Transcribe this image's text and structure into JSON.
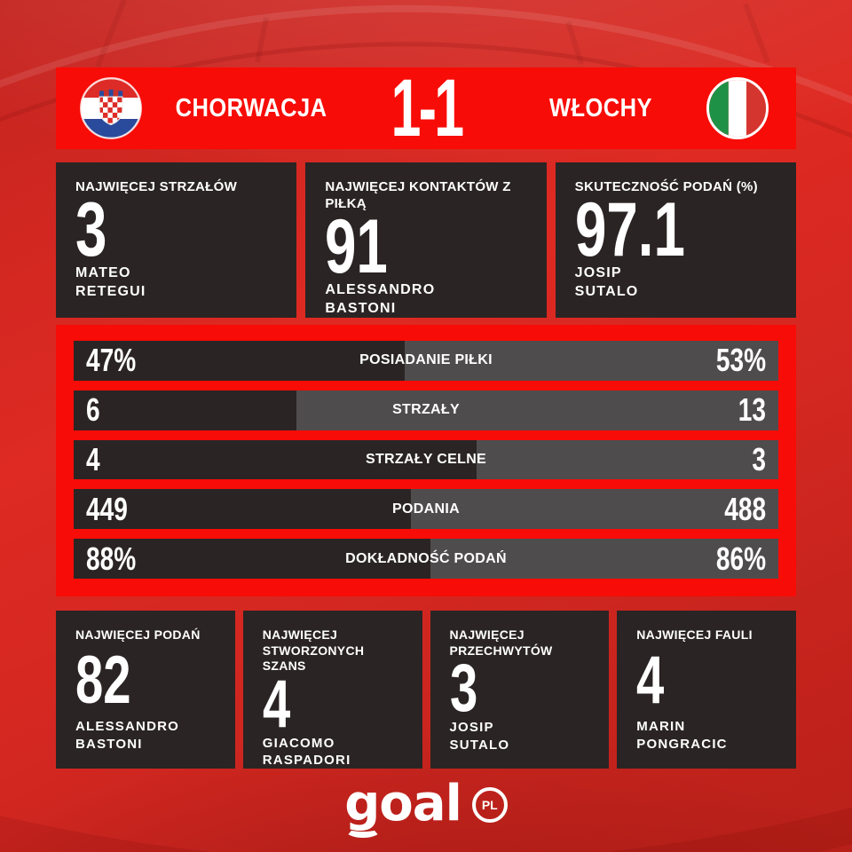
{
  "header": {
    "home_team": "CHORWACJA",
    "away_team": "WŁOCHY",
    "score": "1-1"
  },
  "top_cards": [
    {
      "label": "NAJWIĘCEJ STRZAŁÓW",
      "value": "3",
      "player_lines": [
        "MATEO",
        "RETEGUI"
      ]
    },
    {
      "label": "NAJWIĘCEJ KONTAKTÓW Z PIŁKĄ",
      "value": "91",
      "player_lines": [
        "ALESSANDRO",
        "BASTONI"
      ]
    },
    {
      "label": "SKUTECZNOŚĆ PODAŃ (%)",
      "value": "97.1",
      "player_lines": [
        "JOSIP",
        "SUTALO"
      ]
    }
  ],
  "comparison": {
    "rows": [
      {
        "label": "POSIADANIE PIŁKI",
        "home": 47,
        "away": 53,
        "home_display": "47%",
        "away_display": "53%"
      },
      {
        "label": "STRZAŁY",
        "home": 6,
        "away": 13,
        "home_display": "6",
        "away_display": "13"
      },
      {
        "label": "STRZAŁY CELNE",
        "home": 4,
        "away": 3,
        "home_display": "4",
        "away_display": "3"
      },
      {
        "label": "PODANIA",
        "home": 449,
        "away": 488,
        "home_display": "449",
        "away_display": "488"
      },
      {
        "label": "DOKŁADNOŚĆ PODAŃ",
        "home": 88,
        "away": 86,
        "home_display": "88%",
        "away_display": "86%"
      }
    ]
  },
  "bottom_cards": [
    {
      "label": "NAJWIĘCEJ PODAŃ",
      "value": "82",
      "player_lines": [
        "ALESSANDRO",
        "BASTONI"
      ]
    },
    {
      "label": "NAJWIĘCEJ STWORZONYCH SZANS",
      "value": "4",
      "player_lines": [
        "GIACOMO",
        "RASPADORI"
      ]
    },
    {
      "label": "NAJWIĘCEJ PRZECHWYTÓW",
      "value": "3",
      "player_lines": [
        "JOSIP",
        "SUTALO"
      ]
    },
    {
      "label": "NAJWIĘCEJ FAULI",
      "value": "4",
      "player_lines": [
        "MARIN",
        "PONGRACIC"
      ]
    }
  ],
  "footer": {
    "logo_text": "goal",
    "logo_badge": "PL"
  },
  "colors": {
    "bg-red": "#cc2620",
    "accent-red": "#f70c07",
    "card-dark": "#2b2424",
    "bar-gray": "#4f4c4d",
    "text-white": "#ffffff"
  },
  "chart_data": [
    {
      "type": "bar",
      "title": "CHORWACJA 1-1 WŁOCHY — statystyki meczu",
      "orientation": "horizontal-split-proportional",
      "categories": [
        "POSIADANIE PIŁKI",
        "STRZAŁY",
        "STRZAŁY CELNE",
        "PODANIA",
        "DOKŁADNOŚĆ PODAŃ"
      ],
      "series": [
        {
          "name": "CHORWACJA",
          "values": [
            47,
            6,
            4,
            449,
            88
          ],
          "display": [
            "47%",
            "6",
            "4",
            "449",
            "88%"
          ],
          "color": "#2b2424"
        },
        {
          "name": "WŁOCHY",
          "values": [
            53,
            13,
            3,
            488,
            86
          ],
          "display": [
            "53%",
            "13",
            "3",
            "488",
            "86%"
          ],
          "color": "#4f4c4d"
        }
      ],
      "legend_position": "none",
      "grid": false
    },
    {
      "type": "table",
      "title": "Wyróżnieni zawodnicy",
      "rows": [
        [
          "NAJWIĘCEJ STRZAŁÓW",
          "3",
          "MATEO RETEGUI"
        ],
        [
          "NAJWIĘCEJ KONTAKTÓW Z PIŁKĄ",
          "91",
          "ALESSANDRO BASTONI"
        ],
        [
          "SKUTECZNOŚĆ PODAŃ (%)",
          "97.1",
          "JOSIP SUTALO"
        ],
        [
          "NAJWIĘCEJ PODAŃ",
          "82",
          "ALESSANDRO BASTONI"
        ],
        [
          "NAJWIĘCEJ STWORZONYCH SZANS",
          "4",
          "GIACOMO RASPADORI"
        ],
        [
          "NAJWIĘCEJ PRZECHWYTÓW",
          "3",
          "JOSIP SUTALO"
        ],
        [
          "NAJWIĘCEJ FAULI",
          "4",
          "MARIN PONGRACIC"
        ]
      ]
    }
  ]
}
